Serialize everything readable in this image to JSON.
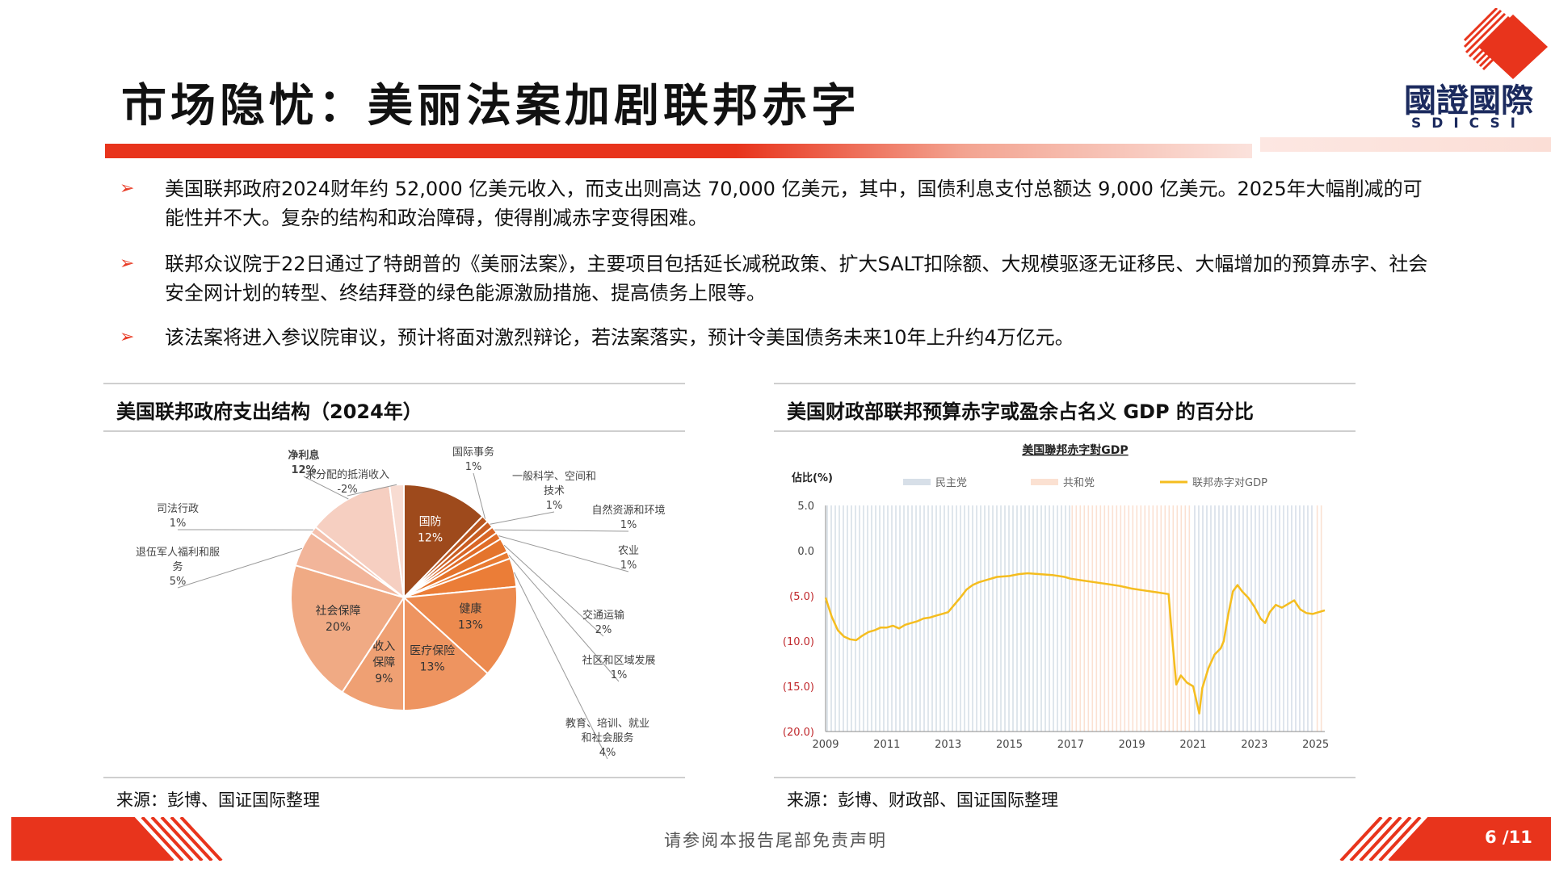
{
  "header": {
    "title": "市场隐忧：美丽法案加剧联邦赤字",
    "logo_text": "國證國際",
    "logo_sub": "SDICSI"
  },
  "bullets": [
    "美国联邦政府2024财年约 52,000 亿美元收入，而支出则高达 70,000 亿美元，其中，国债利息支付总额达 9,000 亿美元。2025年大幅削减的可能性并不大。复杂的结构和政治障碍，使得削减赤字变得困难。",
    "联邦众议院于22日通过了特朗普的《美丽法案》，主要项目包括延长减税政策、扩大SALT扣除额、大规模驱逐无证移民、大幅增加的预算赤字、社会安全网计划的转型、终结拜登的绿色能源激励措施、提高债务上限等。",
    "该法案将进入参议院审议，预计将面对激烈辩论，若法案落实，预计令美国债务未来10年上升约4万亿元。"
  ],
  "left_panel": {
    "title": "美国联邦政府支出结构（2024年）",
    "source": "来源：彭博、国证国际整理"
  },
  "right_panel": {
    "title": "美国财政部联邦预算赤字或盈余占名义 GDP 的百分比",
    "source": "来源：彭博、财政部、国证国际整理"
  },
  "chart_data": [
    {
      "type": "pie",
      "slices": [
        {
          "label": "国防",
          "pct_label": "12%",
          "value": 12,
          "color": "#9e4a1c",
          "label_pos": "inside"
        },
        {
          "label": "国际事务",
          "pct_label": "1%",
          "value": 1,
          "color": "#b8561e",
          "label_pos": "outside"
        },
        {
          "label": "一般科学、空间和技术",
          "pct_label": "1%",
          "value": 1,
          "color": "#c95e22",
          "label_pos": "outside"
        },
        {
          "label": "自然资源和环境",
          "pct_label": "1%",
          "value": 1,
          "color": "#d96626",
          "label_pos": "outside"
        },
        {
          "label": "农业",
          "pct_label": "1%",
          "value": 1,
          "color": "#e06d28",
          "label_pos": "outside"
        },
        {
          "label": "交通运输",
          "pct_label": "2%",
          "value": 2,
          "color": "#e4742c",
          "label_pos": "outside"
        },
        {
          "label": "社区和区域发展",
          "pct_label": "1%",
          "value": 1,
          "color": "#e87b32",
          "label_pos": "outside"
        },
        {
          "label": "教育、培训、就业和社会服务",
          "pct_label": "4%",
          "value": 4,
          "color": "#eb7d37",
          "label_pos": "outside"
        },
        {
          "label": "健康",
          "pct_label": "13%",
          "value": 13,
          "color": "#ec8a4e",
          "label_pos": "inside"
        },
        {
          "label": "医疗保险",
          "pct_label": "13%",
          "value": 13,
          "color": "#ee9460",
          "label_pos": "inside"
        },
        {
          "label": "收入保障",
          "pct_label": "9%",
          "value": 9,
          "color": "#efa073",
          "label_pos": "inside"
        },
        {
          "label": "社会保障",
          "pct_label": "20%",
          "value": 20,
          "color": "#f0aa84",
          "label_pos": "inside"
        },
        {
          "label": "退伍军人福利和服务",
          "pct_label": "5%",
          "value": 5,
          "color": "#f2b59a",
          "label_pos": "outside"
        },
        {
          "label": "司法行政",
          "pct_label": "1%",
          "value": 1,
          "color": "#f4c1ad",
          "label_pos": "outside"
        },
        {
          "label": "净利息",
          "pct_label": "12%",
          "value": 12,
          "color": "#f6cfc1",
          "label_pos": "outside"
        },
        {
          "label": "未分配的抵消收入",
          "pct_label": "-2%",
          "value": 2,
          "color": "#f8dcd2",
          "label_pos": "outside"
        }
      ]
    },
    {
      "type": "line",
      "title": "美国聯邦赤字對GDP",
      "ylabel": "佔比(%)",
      "legend": [
        "民主党",
        "共和党",
        "联邦赤字对GDP"
      ],
      "legend_colors": [
        "#d7dfe8",
        "#fbe1d2",
        "#f5bd1f"
      ],
      "y_ticks": [
        "5.0",
        "0.0",
        "(5.0)",
        "(10.0)",
        "(15.0)",
        "(20.0)"
      ],
      "y_tick_values": [
        5,
        0,
        -5,
        -10,
        -15,
        -20
      ],
      "ylim": [
        -20,
        5
      ],
      "xlim": [
        2009,
        2025.3
      ],
      "x_ticks": [
        "2009",
        "2011",
        "2013",
        "2015",
        "2017",
        "2019",
        "2021",
        "2023",
        "2025"
      ],
      "shading": [
        {
          "party": "民主党",
          "from": 2009,
          "to": 2017
        },
        {
          "party": "共和党",
          "from": 2017,
          "to": 2021
        },
        {
          "party": "民主党",
          "from": 2021,
          "to": 2025
        },
        {
          "party": "共和党",
          "from": 2025,
          "to": 2025.3
        }
      ],
      "series": [
        {
          "name": "联邦赤字对GDP",
          "points": [
            [
              2009.0,
              -5.2
            ],
            [
              2009.2,
              -7.3
            ],
            [
              2009.4,
              -8.8
            ],
            [
              2009.6,
              -9.5
            ],
            [
              2009.8,
              -9.8
            ],
            [
              2010.0,
              -9.9
            ],
            [
              2010.2,
              -9.4
            ],
            [
              2010.4,
              -9.0
            ],
            [
              2010.6,
              -8.8
            ],
            [
              2010.8,
              -8.5
            ],
            [
              2011.0,
              -8.5
            ],
            [
              2011.2,
              -8.3
            ],
            [
              2011.4,
              -8.6
            ],
            [
              2011.6,
              -8.2
            ],
            [
              2011.8,
              -8.0
            ],
            [
              2012.0,
              -7.8
            ],
            [
              2012.2,
              -7.5
            ],
            [
              2012.4,
              -7.4
            ],
            [
              2012.6,
              -7.2
            ],
            [
              2012.8,
              -7.0
            ],
            [
              2013.0,
              -6.8
            ],
            [
              2013.2,
              -6.0
            ],
            [
              2013.4,
              -5.2
            ],
            [
              2013.6,
              -4.3
            ],
            [
              2013.8,
              -3.8
            ],
            [
              2014.0,
              -3.5
            ],
            [
              2014.3,
              -3.2
            ],
            [
              2014.6,
              -2.9
            ],
            [
              2015.0,
              -2.8
            ],
            [
              2015.3,
              -2.6
            ],
            [
              2015.6,
              -2.5
            ],
            [
              2016.0,
              -2.6
            ],
            [
              2016.4,
              -2.7
            ],
            [
              2016.8,
              -2.9
            ],
            [
              2017.0,
              -3.1
            ],
            [
              2017.4,
              -3.3
            ],
            [
              2017.8,
              -3.5
            ],
            [
              2018.2,
              -3.7
            ],
            [
              2018.6,
              -3.9
            ],
            [
              2019.0,
              -4.2
            ],
            [
              2019.4,
              -4.4
            ],
            [
              2019.8,
              -4.6
            ],
            [
              2020.2,
              -4.8
            ],
            [
              2020.3,
              -9.0
            ],
            [
              2020.45,
              -14.8
            ],
            [
              2020.6,
              -13.8
            ],
            [
              2020.8,
              -14.6
            ],
            [
              2021.0,
              -15.0
            ],
            [
              2021.1,
              -16.5
            ],
            [
              2021.2,
              -18.0
            ],
            [
              2021.3,
              -15.2
            ],
            [
              2021.5,
              -13.0
            ],
            [
              2021.7,
              -11.5
            ],
            [
              2021.9,
              -10.8
            ],
            [
              2022.0,
              -10.0
            ],
            [
              2022.15,
              -7.0
            ],
            [
              2022.3,
              -4.5
            ],
            [
              2022.45,
              -3.8
            ],
            [
              2022.6,
              -4.5
            ],
            [
              2022.8,
              -5.2
            ],
            [
              2023.0,
              -6.2
            ],
            [
              2023.2,
              -7.5
            ],
            [
              2023.35,
              -8.0
            ],
            [
              2023.5,
              -6.8
            ],
            [
              2023.7,
              -6.0
            ],
            [
              2023.9,
              -6.3
            ],
            [
              2024.1,
              -5.9
            ],
            [
              2024.3,
              -5.5
            ],
            [
              2024.5,
              -6.5
            ],
            [
              2024.7,
              -6.9
            ],
            [
              2024.9,
              -7.0
            ],
            [
              2025.1,
              -6.8
            ],
            [
              2025.3,
              -6.6
            ]
          ]
        }
      ]
    }
  ],
  "footer": {
    "disclaimer": "请参阅本报告尾部免责声明",
    "page": "6 /11"
  },
  "colors": {
    "accent": "#e8341c",
    "line": "#f5bd1f"
  }
}
